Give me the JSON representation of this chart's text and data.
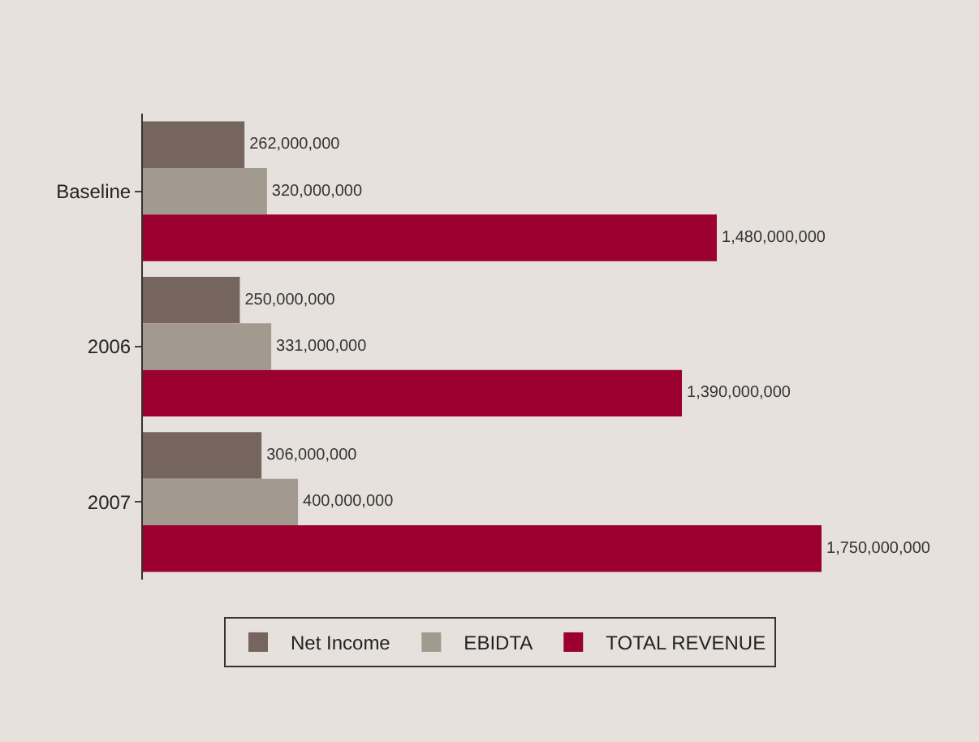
{
  "chart_data": {
    "type": "bar",
    "orientation": "horizontal",
    "categories": [
      "Baseline",
      "2006",
      "2007"
    ],
    "series": [
      {
        "name": "Net Income",
        "color": "#76655e",
        "values": [
          262000000,
          250000000,
          306000000
        ],
        "value_labels": [
          "262,000,000",
          "250,000,000",
          "306,000,000"
        ]
      },
      {
        "name": "EBIDTA",
        "color": "#a39a8f",
        "values": [
          320000000,
          331000000,
          400000000
        ],
        "value_labels": [
          "320,000,000",
          "331,000,000",
          "400,000,000"
        ]
      },
      {
        "name": "TOTAL REVENUE",
        "color": "#9b0030",
        "values": [
          1480000000,
          1390000000,
          1750000000
        ],
        "value_labels": [
          "1,480,000,000",
          "1,390,000,000",
          "1,750,000,000"
        ]
      }
    ],
    "legend": "bottom",
    "grid": false
  }
}
